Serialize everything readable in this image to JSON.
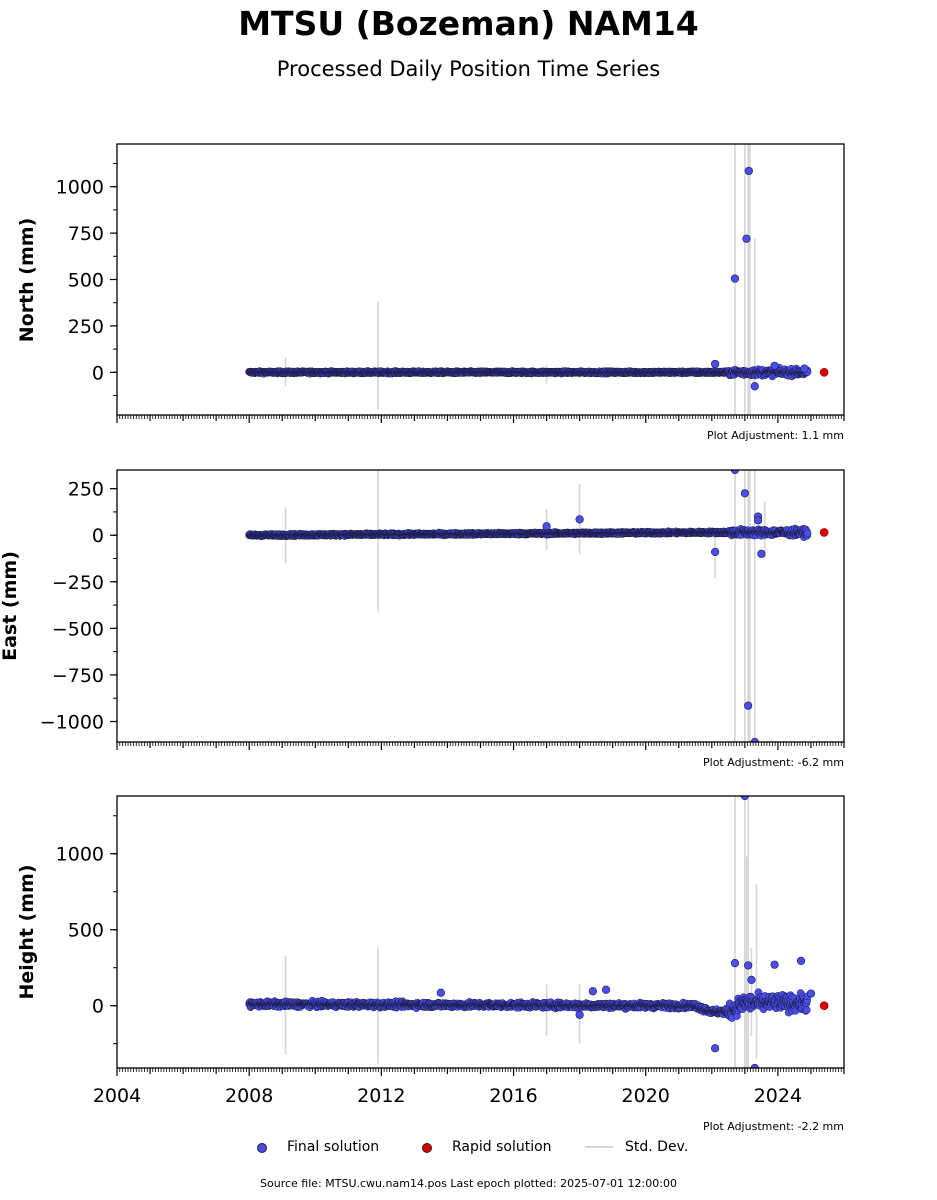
{
  "title": "MTSU (Bozeman) NAM14",
  "subtitle": "Processed Daily Position Time Series",
  "legend": {
    "final": "Final solution",
    "rapid": "Rapid solution",
    "stddev": "Std. Dev."
  },
  "footer": "Source file: MTSU.cwu.nam14.pos  Last epoch plotted: 2025-07-01 12:00:00",
  "colors": {
    "final": "#4a4ef0",
    "rapid": "#e00000",
    "stddev": "#d6d6d6",
    "edge": "#1a1a3a"
  },
  "chart_data": [
    {
      "type": "scatter",
      "ylabel": "North (mm)",
      "adjustment": "Plot Adjustment: 1.1 mm",
      "xlim": [
        2004,
        2026
      ],
      "ylim": [
        -230,
        1230
      ],
      "yticks": [
        0,
        250,
        500,
        750,
        1000
      ],
      "ytick_labels": [
        "0",
        "250",
        "500",
        "750",
        "1000"
      ],
      "show_xtick_labels": false,
      "baseline": [
        [
          2008.0,
          0
        ],
        [
          2022.0,
          0
        ],
        [
          2024.9,
          0
        ]
      ],
      "noise": 4,
      "outliers": [
        [
          2022.1,
          45
        ],
        [
          2022.7,
          505
        ],
        [
          2023.05,
          720
        ],
        [
          2023.12,
          1085
        ],
        [
          2023.3,
          -75
        ],
        [
          2023.9,
          35
        ],
        [
          2024.8,
          20
        ]
      ],
      "stddev_bars": [
        [
          2009.1,
          -75,
          80
        ],
        [
          2011.9,
          -200,
          380
        ],
        [
          2017.0,
          -60,
          40
        ],
        [
          2018.0,
          -30,
          30
        ],
        [
          2022.7,
          -230,
          1230
        ],
        [
          2023.0,
          -230,
          1230
        ],
        [
          2023.1,
          -230,
          1230
        ],
        [
          2023.15,
          -230,
          1230
        ],
        [
          2023.3,
          -100,
          720
        ]
      ],
      "rapid_points": [
        [
          2025.4,
          0
        ]
      ]
    },
    {
      "type": "scatter",
      "ylabel": "East (mm)",
      "adjustment": "Plot Adjustment: -6.2 mm",
      "xlim": [
        2004,
        2026
      ],
      "ylim": [
        -1110,
        350
      ],
      "yticks": [
        250,
        0,
        -250,
        -500,
        -750,
        -1000
      ],
      "ytick_labels": [
        "250",
        "0",
        "−250",
        "−500",
        "−750",
        "−1000"
      ],
      "show_xtick_labels": false,
      "baseline": [
        [
          2008.0,
          0
        ],
        [
          2022.0,
          15
        ],
        [
          2024.9,
          15
        ]
      ],
      "noise": 4,
      "outliers": [
        [
          2017.0,
          48
        ],
        [
          2018.0,
          85
        ],
        [
          2022.1,
          -90
        ],
        [
          2022.7,
          350
        ],
        [
          2023.0,
          225
        ],
        [
          2023.1,
          -915
        ],
        [
          2023.3,
          -1110
        ],
        [
          2023.4,
          100
        ],
        [
          2023.5,
          -100
        ],
        [
          2023.4,
          80
        ]
      ],
      "stddev_bars": [
        [
          2009.1,
          -150,
          150
        ],
        [
          2011.9,
          -410,
          350
        ],
        [
          2017.0,
          -80,
          140
        ],
        [
          2018.0,
          -100,
          275
        ],
        [
          2022.1,
          -230,
          30
        ],
        [
          2022.7,
          -1110,
          350
        ],
        [
          2023.0,
          -1110,
          350
        ],
        [
          2023.1,
          -1110,
          350
        ],
        [
          2023.15,
          -1110,
          350
        ],
        [
          2023.3,
          -1110,
          350
        ],
        [
          2023.6,
          -120,
          180
        ]
      ],
      "rapid_points": [
        [
          2025.4,
          15
        ]
      ]
    },
    {
      "type": "scatter",
      "ylabel": "Height (mm)",
      "adjustment": "Plot Adjustment: -2.2 mm",
      "xlim": [
        2004,
        2026
      ],
      "ylim": [
        -410,
        1380
      ],
      "yticks": [
        0,
        500,
        1000
      ],
      "ytick_labels": [
        "0",
        "500",
        "1000"
      ],
      "xticks": [
        2004,
        2008,
        2012,
        2016,
        2020,
        2024
      ],
      "show_xtick_labels": true,
      "baseline": [
        [
          2008.0,
          10
        ],
        [
          2021.5,
          0
        ],
        [
          2022.0,
          -40
        ],
        [
          2022.5,
          -40
        ],
        [
          2023.0,
          20
        ],
        [
          2024.9,
          20
        ]
      ],
      "noise": 12,
      "outliers": [
        [
          2013.8,
          85
        ],
        [
          2018.0,
          -60
        ],
        [
          2018.4,
          95
        ],
        [
          2018.8,
          105
        ],
        [
          2022.1,
          -280
        ],
        [
          2022.7,
          280
        ],
        [
          2023.1,
          265
        ],
        [
          2023.2,
          170
        ],
        [
          2023.3,
          -410
        ],
        [
          2023.9,
          270
        ],
        [
          2024.7,
          295
        ],
        [
          2023.0,
          1380
        ],
        [
          2025.0,
          80
        ]
      ],
      "stddev_bars": [
        [
          2009.1,
          -320,
          330
        ],
        [
          2011.9,
          -380,
          390
        ],
        [
          2017.0,
          -200,
          140
        ],
        [
          2018.0,
          -250,
          140
        ],
        [
          2022.7,
          -410,
          1380
        ],
        [
          2023.0,
          -410,
          1380
        ],
        [
          2023.05,
          -410,
          980
        ],
        [
          2023.1,
          -410,
          1380
        ],
        [
          2023.2,
          -200,
          380
        ],
        [
          2023.35,
          -350,
          800
        ]
      ],
      "rapid_points": [
        [
          2025.4,
          0
        ]
      ]
    }
  ]
}
